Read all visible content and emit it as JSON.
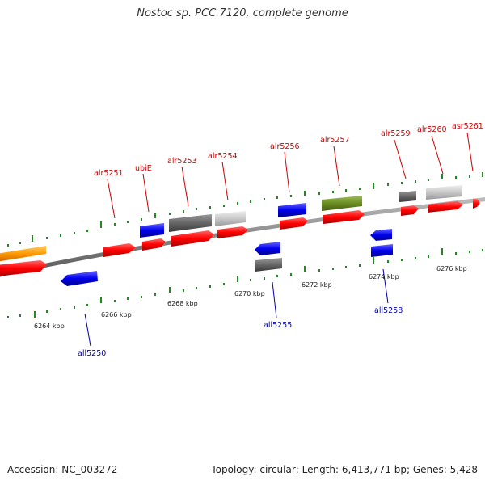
{
  "title": "Nostoc sp. PCC 7120, complete genome",
  "footer": {
    "accession": "Accession: NC_003272",
    "summary": "Topology: circular; Length: 6,413,771 bp; Genes: 5,428"
  },
  "colors": {
    "forward_gene": "#ff0000",
    "reverse_gene": "#0000ee",
    "forward_label": "#cc0000",
    "reverse_label": "#0000aa",
    "backbone": "#888888",
    "tick": "#228822",
    "feature_dark": "#666666",
    "feature_light": "#c8c8c8",
    "feature_green": "#6b8e23",
    "feature_orange": "#ff9900"
  },
  "coordinate_labels": [
    "6264 kbp",
    "6266 kbp",
    "6268 kbp",
    "6270 kbp",
    "6272 kbp",
    "6274 kbp",
    "6276 kbp"
  ],
  "forward_labels": [
    "alr5251",
    "ubiE",
    "alr5253",
    "alr5254",
    "alr5256",
    "alr5257",
    "alr5259",
    "alr5260",
    "asr5261"
  ],
  "reverse_labels": [
    "all5250",
    "all5255",
    "all5258"
  ]
}
